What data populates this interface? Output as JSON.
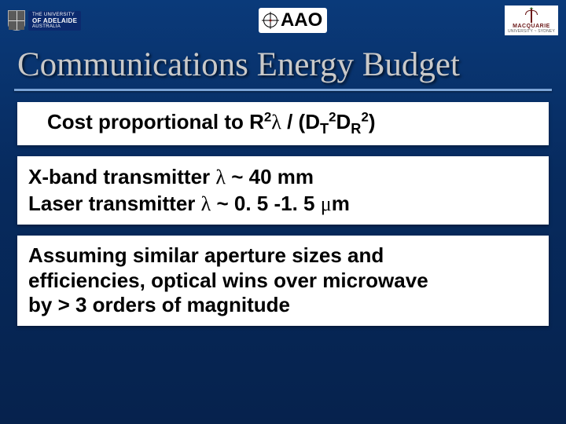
{
  "header": {
    "adelaide": {
      "line1": "THE UNIVERSITY",
      "line2": "OF ADELAIDE",
      "line3": "AUSTRALIA"
    },
    "aao": {
      "text": "AAO"
    },
    "macquarie": {
      "line1": "MACQUARIE",
      "line2": "UNIVERSITY ~ SYDNEY"
    }
  },
  "title": "Communications Energy Budget",
  "cost": {
    "prefix": "Cost proportional to R",
    "mid": " / (D",
    "end": ")",
    "subs": {
      "T": "T",
      "D": "D",
      "R": "R"
    },
    "lambda": "λ",
    "two": "2"
  },
  "bands": {
    "xband_prefix": "X-band transmitter ",
    "xband_val": " ~ 40 mm",
    "laser_prefix": "Laser transmitter ",
    "laser_val": " ~ 0. 5 -1. 5 ",
    "laser_unit": "m",
    "mu": "μ"
  },
  "assume": {
    "l1": "Assuming similar aperture sizes and",
    "l2": "efficiencies, optical wins over microwave",
    "l3": "by > 3 orders of magnitude"
  },
  "colors": {
    "bg_top": "#0a3a7a",
    "bg_bottom": "#06224d",
    "title_color": "#c9c9c9",
    "rule_color": "#7aa3d6",
    "box_bg": "#ffffff",
    "text_color": "#000000"
  }
}
